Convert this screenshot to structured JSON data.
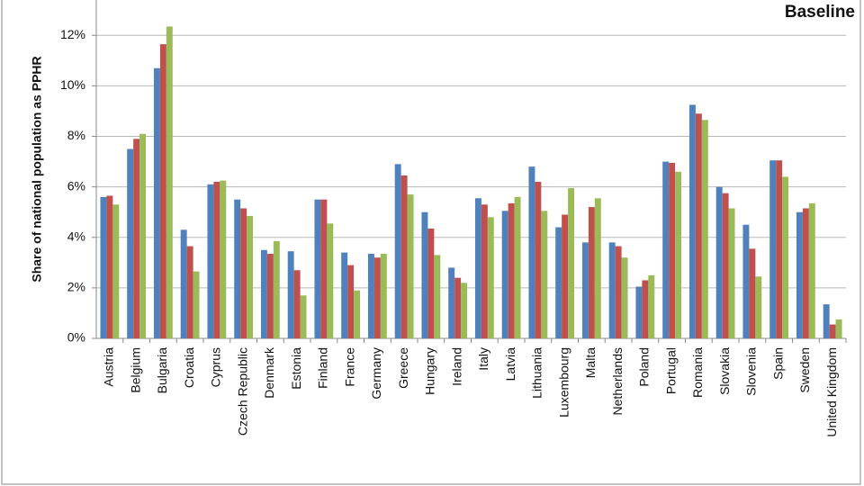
{
  "chart_data": {
    "type": "bar",
    "title": "Baseline",
    "y_label": "Share of national population as PPHR",
    "categories": [
      "Austria",
      "Belgium",
      "Bulgaria",
      "Croatia",
      "Cyprus",
      "Czech Republic",
      "Denmark",
      "Estonia",
      "Finland",
      "France",
      "Germany",
      "Greece",
      "Hungary",
      "Ireland",
      "Italy",
      "Latvia",
      "Lithuania",
      "Luxembourg",
      "Malta",
      "Netherlands",
      "Poland",
      "Portugal",
      "Romania",
      "Slovakia",
      "Slovenia",
      "Spain",
      "Sweden",
      "United Kingdom"
    ],
    "series": [
      {
        "color": "#4f81bd",
        "values": [
          5.6,
          7.5,
          10.7,
          4.3,
          6.1,
          5.5,
          3.5,
          3.45,
          5.5,
          3.4,
          3.35,
          6.9,
          5.0,
          2.8,
          5.55,
          5.05,
          6.8,
          4.4,
          3.8,
          3.8,
          2.05,
          7.0,
          9.25,
          6.0,
          4.5,
          7.05,
          5.0,
          1.35
        ]
      },
      {
        "color": "#c0504d",
        "values": [
          5.65,
          7.9,
          11.65,
          3.65,
          6.2,
          5.15,
          3.35,
          2.7,
          5.5,
          2.9,
          3.2,
          6.45,
          4.35,
          2.4,
          5.3,
          5.35,
          6.2,
          4.9,
          5.2,
          3.65,
          2.3,
          6.95,
          8.9,
          5.75,
          3.55,
          7.05,
          5.15,
          0.55
        ]
      },
      {
        "color": "#9bbb59",
        "values": [
          5.3,
          8.1,
          12.35,
          2.65,
          6.25,
          4.85,
          3.85,
          1.7,
          4.55,
          1.9,
          3.35,
          5.7,
          3.3,
          2.2,
          4.8,
          5.6,
          5.05,
          5.95,
          5.55,
          3.2,
          2.5,
          6.6,
          8.65,
          5.15,
          2.45,
          6.4,
          5.35,
          0.75
        ]
      }
    ],
    "ylim": [
      0,
      13.4
    ],
    "yticks": [
      {
        "value": 0,
        "label": "0%"
      },
      {
        "value": 2,
        "label": "2%"
      },
      {
        "value": 4,
        "label": "4%"
      },
      {
        "value": 6,
        "label": "6%"
      },
      {
        "value": 8,
        "label": "8%"
      },
      {
        "value": 10,
        "label": "10%"
      },
      {
        "value": 12,
        "label": "12%"
      }
    ],
    "grid": true
  }
}
